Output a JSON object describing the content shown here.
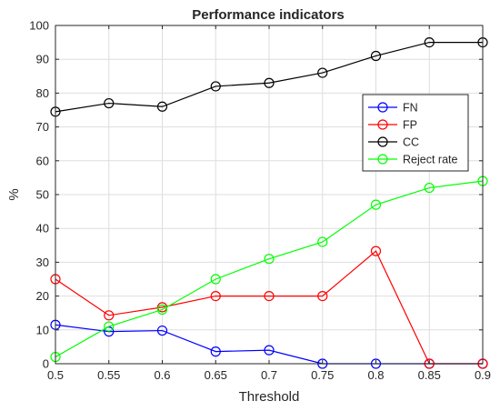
{
  "chart_data": {
    "type": "line",
    "title": "Performance indicators",
    "xlabel": "Threshold",
    "ylabel": "%",
    "xlim": [
      0.5,
      0.9
    ],
    "ylim": [
      0,
      100
    ],
    "x_ticks": [
      "0.5",
      "0.55",
      "0.6",
      "0.65",
      "0.7",
      "0.75",
      "0.8",
      "0.85",
      "0.9"
    ],
    "y_ticks": [
      "0",
      "10",
      "20",
      "30",
      "40",
      "50",
      "60",
      "70",
      "80",
      "90",
      "100"
    ],
    "grid": true,
    "legend_position": "right",
    "x": [
      0.5,
      0.55,
      0.6,
      0.65,
      0.7,
      0.75,
      0.8,
      0.85,
      0.9
    ],
    "series": [
      {
        "name": "FN",
        "color": "#0000ff",
        "values": [
          11.5,
          9.5,
          9.8,
          3.6,
          4.0,
          0,
          0,
          0,
          0
        ]
      },
      {
        "name": "FP",
        "color": "#ff0000",
        "values": [
          25,
          14.3,
          16.7,
          20,
          20,
          20,
          33.3,
          0,
          0
        ]
      },
      {
        "name": "CC",
        "color": "#000000",
        "values": [
          74.5,
          77,
          76,
          82,
          83,
          86,
          91,
          95,
          95
        ]
      },
      {
        "name": "Reject rate",
        "color": "#00ff00",
        "values": [
          2,
          11,
          16,
          25,
          31,
          36,
          47,
          52,
          54
        ]
      }
    ]
  }
}
